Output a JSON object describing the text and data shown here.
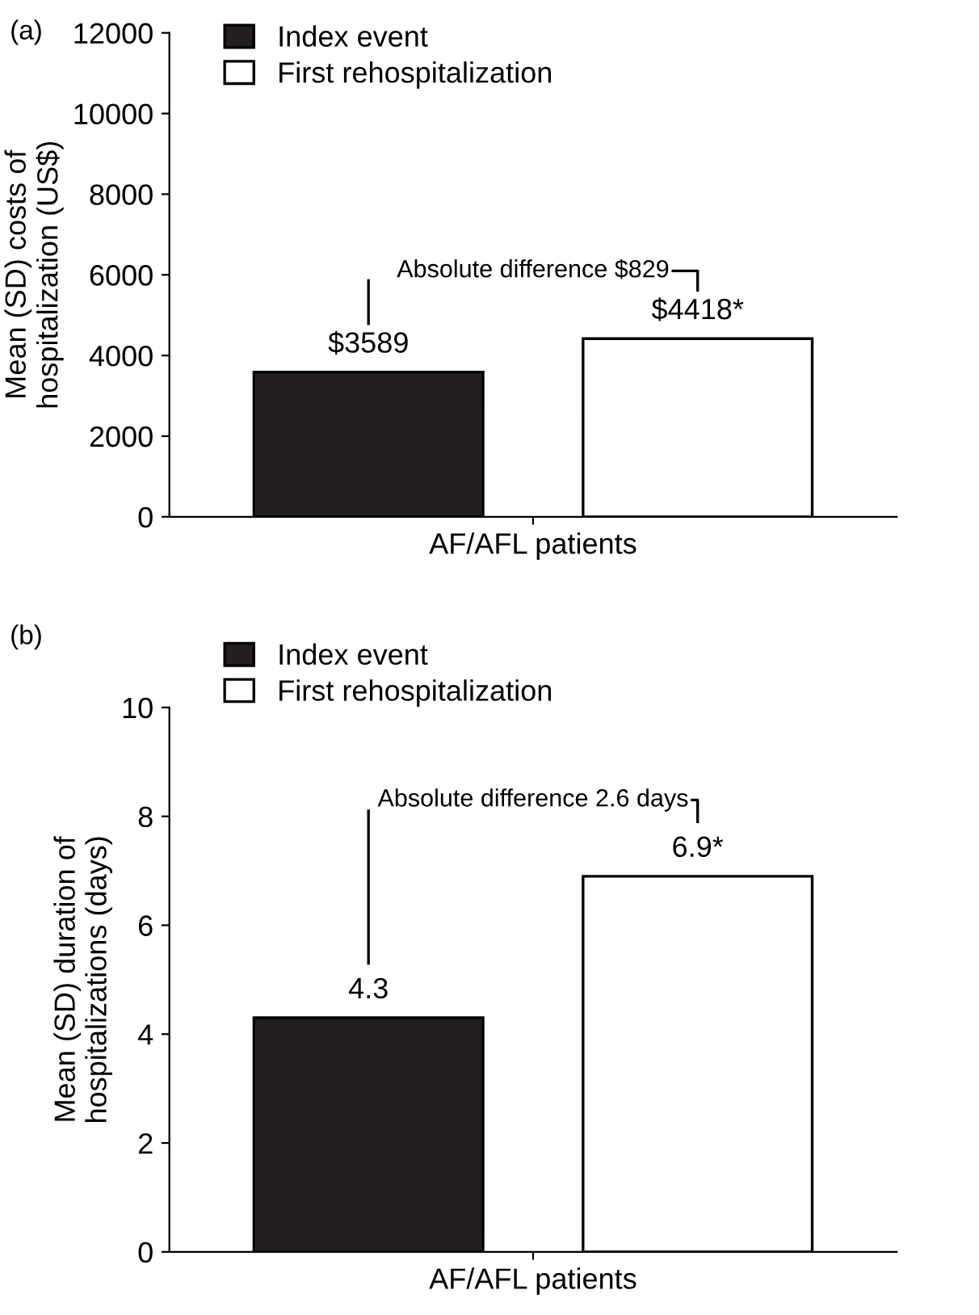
{
  "chart_data": [
    {
      "type": "bar",
      "title": "(a)",
      "ylabel": "Mean (SD) costs of\nhospitalization (US$)",
      "categories": [
        "AF/AFL patients"
      ],
      "series": [
        {
          "name": "Index event",
          "color": "#231f20",
          "values": [
            3589
          ],
          "value_labels": [
            "$3589"
          ]
        },
        {
          "name": "First rehospitalization",
          "color": "#ffffff",
          "values": [
            4418
          ],
          "value_labels": [
            "$4418*"
          ]
        }
      ],
      "ylim": [
        0,
        12000
      ],
      "yticks": [
        0,
        2000,
        4000,
        6000,
        8000,
        10000,
        12000
      ],
      "legend": "top left",
      "grid": false,
      "annotations": [
        "Absolute difference $829"
      ]
    },
    {
      "type": "bar",
      "title": "(b)",
      "ylabel": "Mean (SD) duration of\nhospitalizations (days)",
      "categories": [
        "AF/AFL patients"
      ],
      "series": [
        {
          "name": "Index event",
          "color": "#231f20",
          "values": [
            4.3
          ],
          "value_labels": [
            "4.3"
          ]
        },
        {
          "name": "First rehospitalization",
          "color": "#ffffff",
          "values": [
            6.9
          ],
          "value_labels": [
            "6.9*"
          ]
        }
      ],
      "ylim": [
        0,
        10
      ],
      "yticks": [
        0,
        2,
        4,
        6,
        8,
        10
      ],
      "legend": "top",
      "grid": false,
      "annotations": [
        "Absolute difference 2.6 days"
      ]
    }
  ]
}
